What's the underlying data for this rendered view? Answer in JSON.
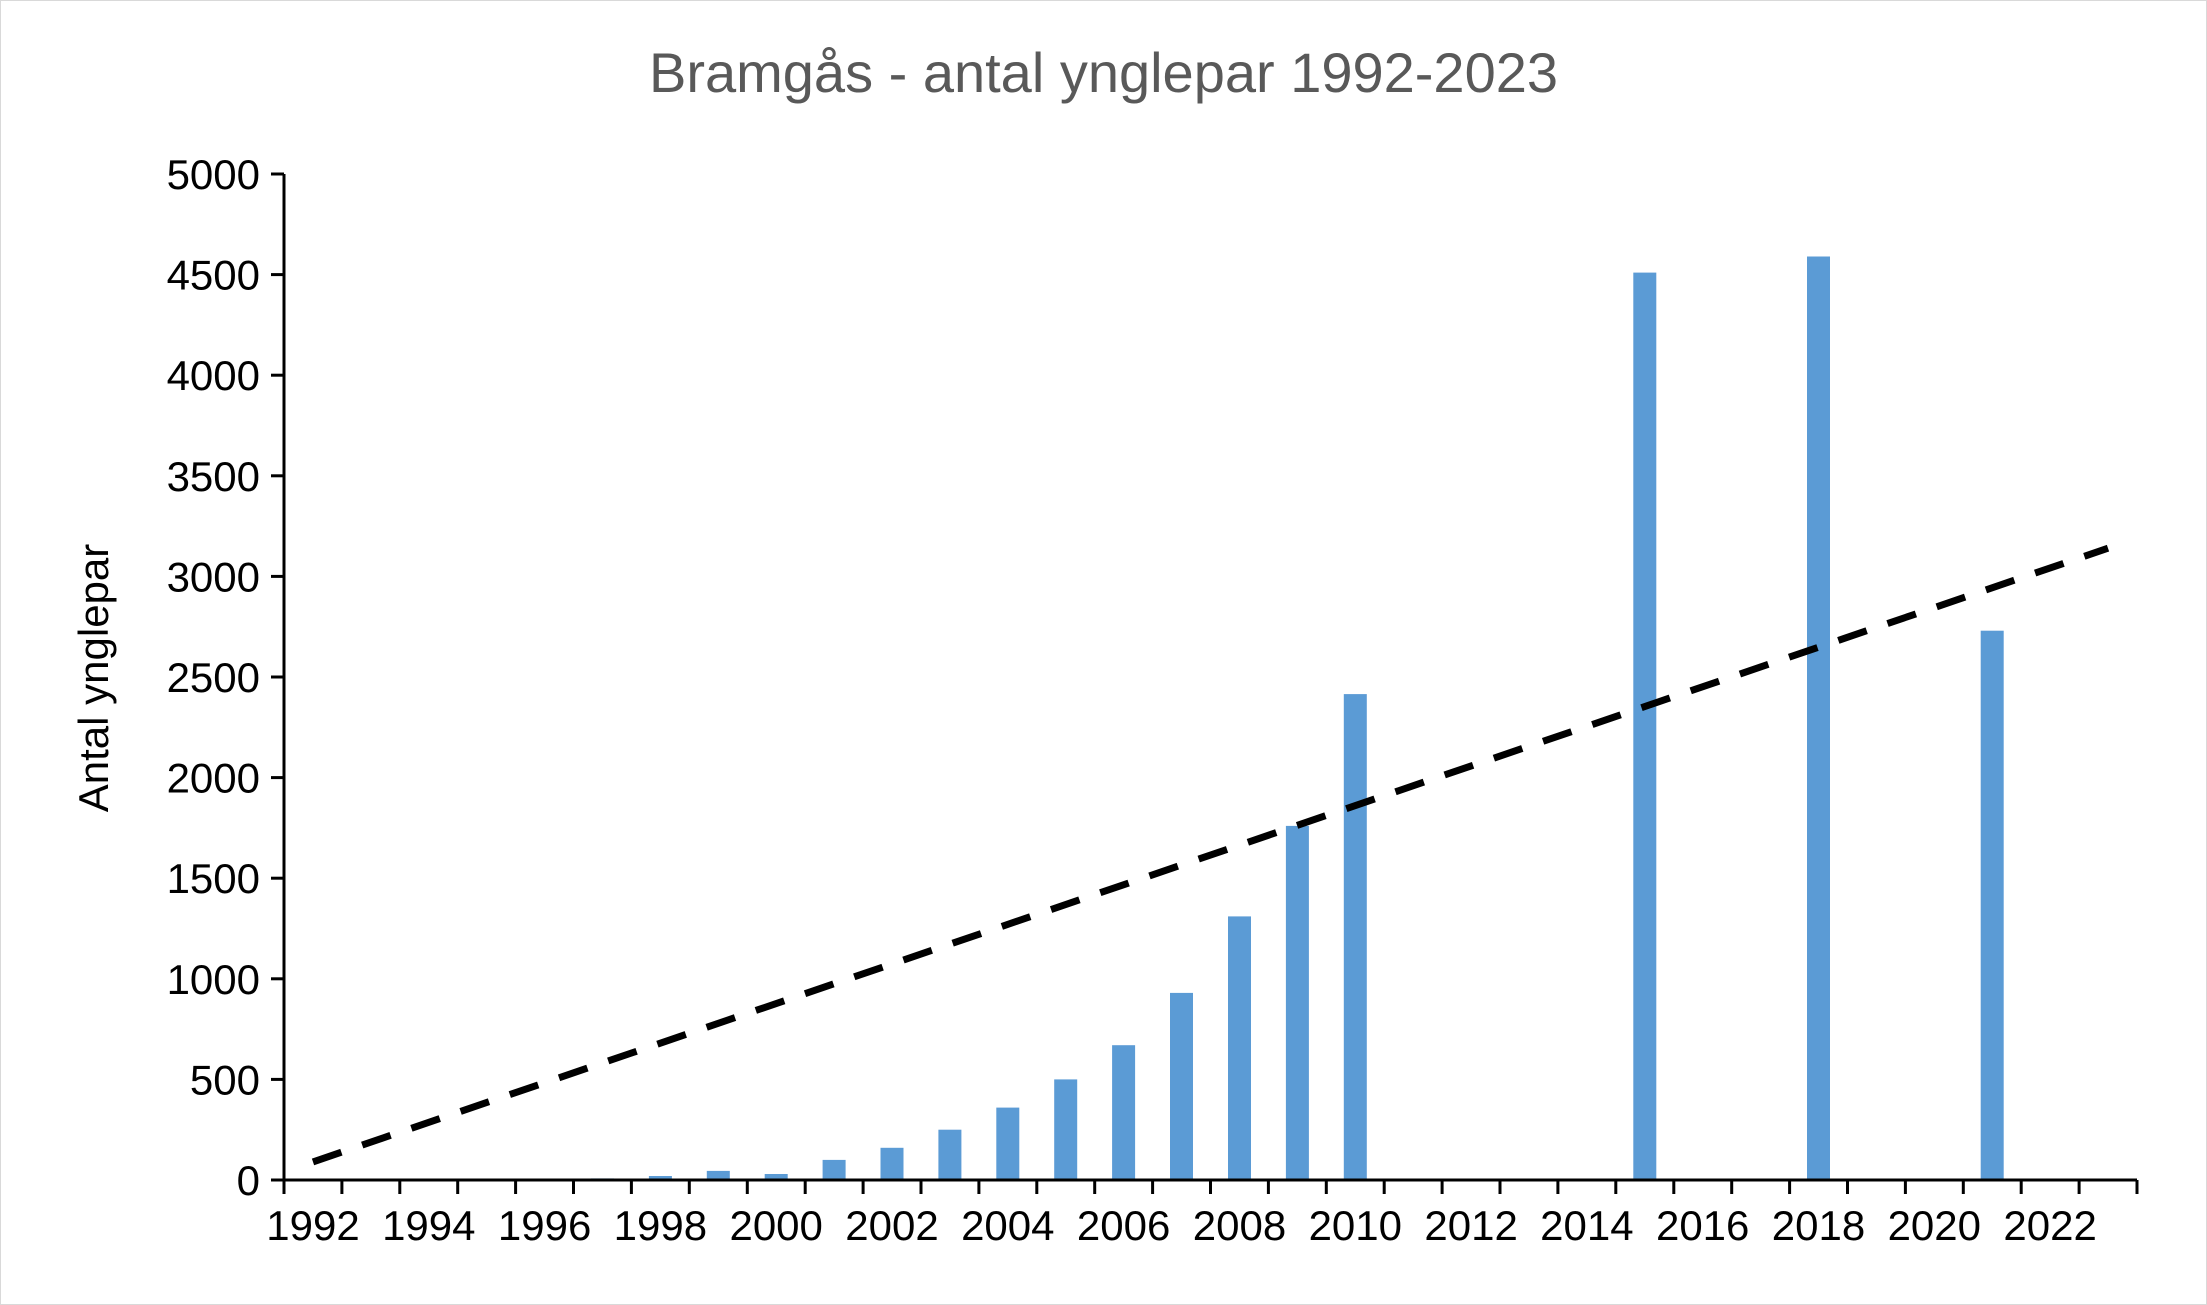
{
  "chart_data": {
    "type": "bar",
    "title": "Bramgås - antal ynglepar 1992-2023",
    "xlabel": "",
    "ylabel": "Antal ynglepar",
    "x": [
      1992,
      1993,
      1994,
      1995,
      1996,
      1997,
      1998,
      1999,
      2000,
      2001,
      2002,
      2003,
      2004,
      2005,
      2006,
      2007,
      2008,
      2009,
      2010,
      2011,
      2012,
      2013,
      2014,
      2015,
      2016,
      2017,
      2018,
      2019,
      2020,
      2021,
      2022,
      2023
    ],
    "values": [
      0,
      0,
      0,
      0,
      0,
      8,
      20,
      45,
      30,
      100,
      160,
      250,
      360,
      500,
      670,
      930,
      1310,
      1760,
      2415,
      null,
      null,
      null,
      null,
      4510,
      null,
      null,
      4590,
      null,
      null,
      2730,
      null,
      null
    ],
    "x_tick_labels": [
      "1992",
      "1994",
      "1996",
      "1998",
      "2000",
      "2002",
      "2004",
      "2006",
      "2008",
      "2010",
      "2012",
      "2014",
      "2016",
      "2018",
      "2020",
      "2022"
    ],
    "y_tick_labels": [
      "0",
      "500",
      "1000",
      "1500",
      "2000",
      "2500",
      "3000",
      "3500",
      "4000",
      "4500",
      "5000"
    ],
    "ylim": [
      0,
      5000
    ],
    "xlim": [
      1992,
      2023
    ],
    "grid": false,
    "legend": "none",
    "bar_color": "#5b9bd5",
    "trendline": {
      "type": "linear",
      "style": "dashed",
      "color": "#000000",
      "start": {
        "x": 1992,
        "y": 90
      },
      "end": {
        "x": 2023,
        "y": 3140
      }
    }
  }
}
